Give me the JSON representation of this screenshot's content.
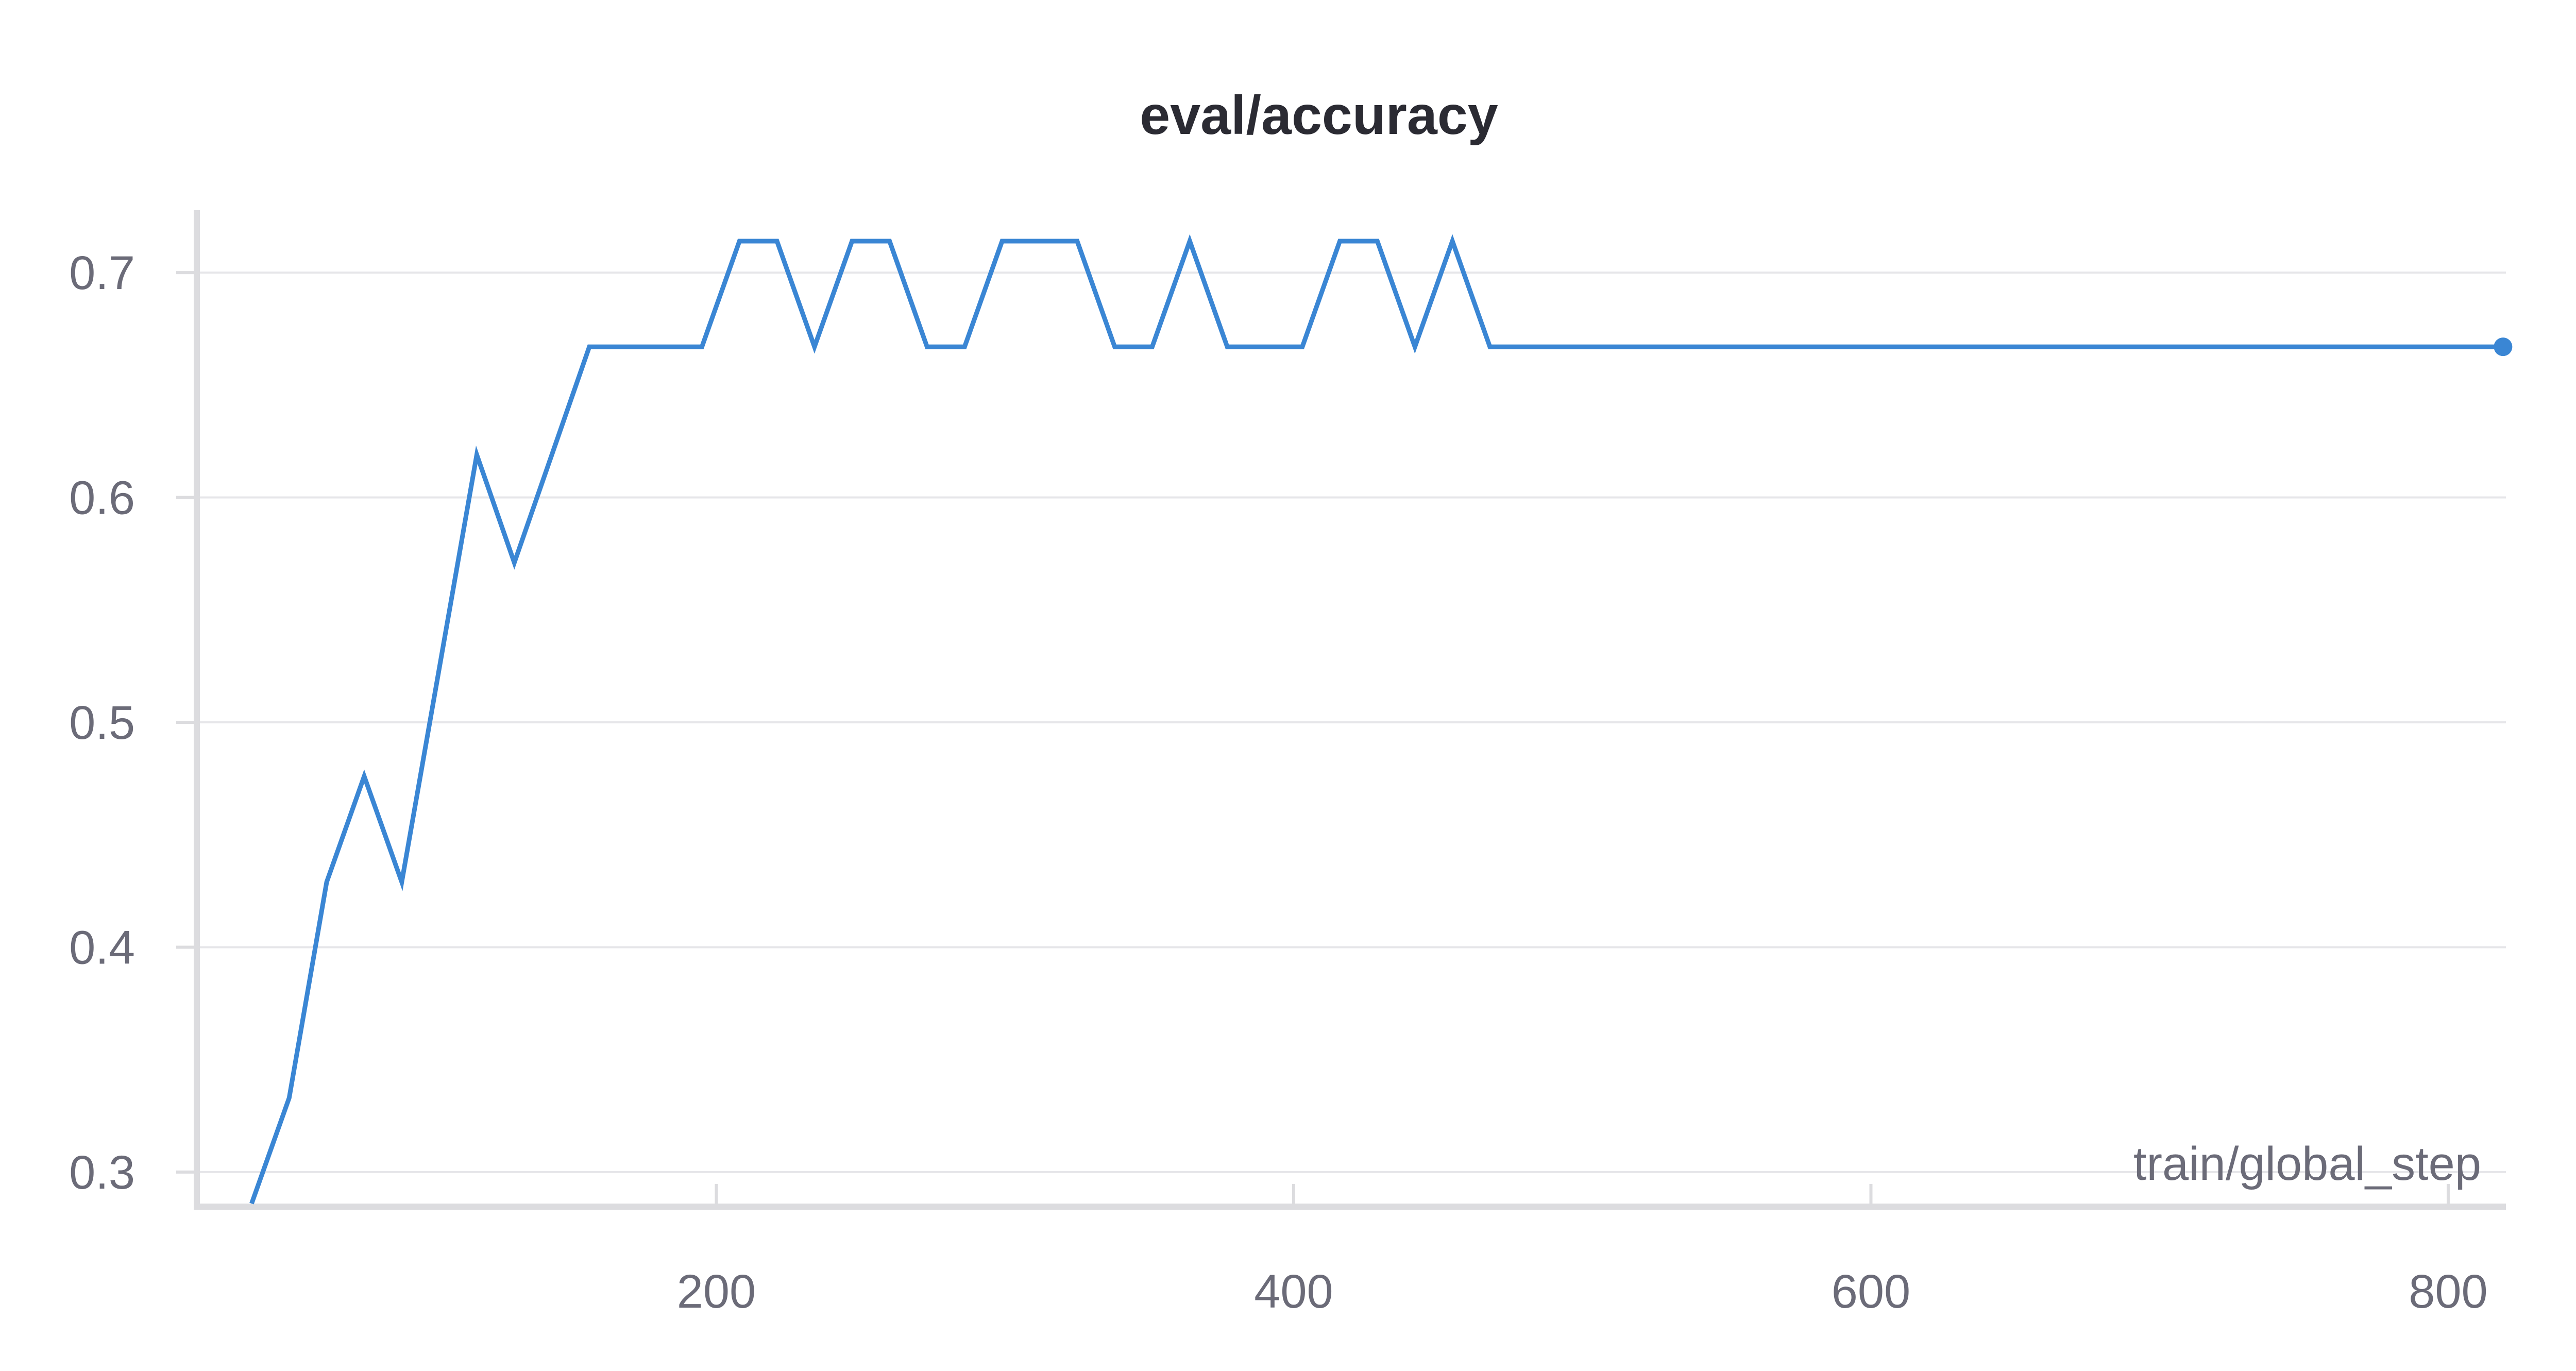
{
  "colors": {
    "series": "#3a86d4",
    "grid": "#e6e6e9",
    "axis": "#dcdcdf",
    "text": "#6b6b78",
    "title": "#2b2b33"
  },
  "chart_data": {
    "type": "line",
    "title": "eval/accuracy",
    "xlabel": "train/global_step",
    "ylabel": "",
    "xlim": [
      20,
      820
    ],
    "ylim": [
      0.286,
      0.714
    ],
    "xticks": [
      200,
      400,
      600,
      800
    ],
    "xtick_labels": [
      "200",
      "400",
      "600",
      "800"
    ],
    "yticks": [
      0.3,
      0.4,
      0.5,
      0.6,
      0.7
    ],
    "ytick_labels": [
      "0.3",
      "0.4",
      "0.5",
      "0.6",
      "0.7"
    ],
    "grid": true,
    "legend": "none",
    "series": [
      {
        "color": "#3a86d4",
        "x": [
          39,
          52,
          65,
          78,
          91,
          104,
          117,
          130,
          143,
          156,
          169,
          182,
          195,
          208,
          221,
          234,
          247,
          260,
          273,
          286,
          299,
          312,
          325,
          338,
          351,
          364,
          377,
          390,
          403,
          416,
          429,
          442,
          455,
          468,
          481,
          494,
          507,
          520,
          533,
          546,
          559,
          572,
          585,
          598,
          611,
          624,
          637,
          650,
          663,
          676,
          689,
          702,
          715,
          728,
          741,
          754,
          767,
          780,
          793,
          806,
          819
        ],
        "y": [
          0.286,
          0.333,
          0.429,
          0.476,
          0.429,
          0.524,
          0.619,
          0.571,
          0.619,
          0.667,
          0.667,
          0.667,
          0.667,
          0.714,
          0.714,
          0.667,
          0.714,
          0.714,
          0.667,
          0.667,
          0.714,
          0.714,
          0.714,
          0.667,
          0.667,
          0.714,
          0.667,
          0.667,
          0.667,
          0.714,
          0.714,
          0.667,
          0.714,
          0.667,
          0.667,
          0.667,
          0.667,
          0.667,
          0.667,
          0.667,
          0.667,
          0.667,
          0.667,
          0.667,
          0.667,
          0.667,
          0.667,
          0.667,
          0.667,
          0.667,
          0.667,
          0.667,
          0.667,
          0.667,
          0.667,
          0.667,
          0.667,
          0.667,
          0.667,
          0.667,
          0.667
        ]
      }
    ]
  }
}
